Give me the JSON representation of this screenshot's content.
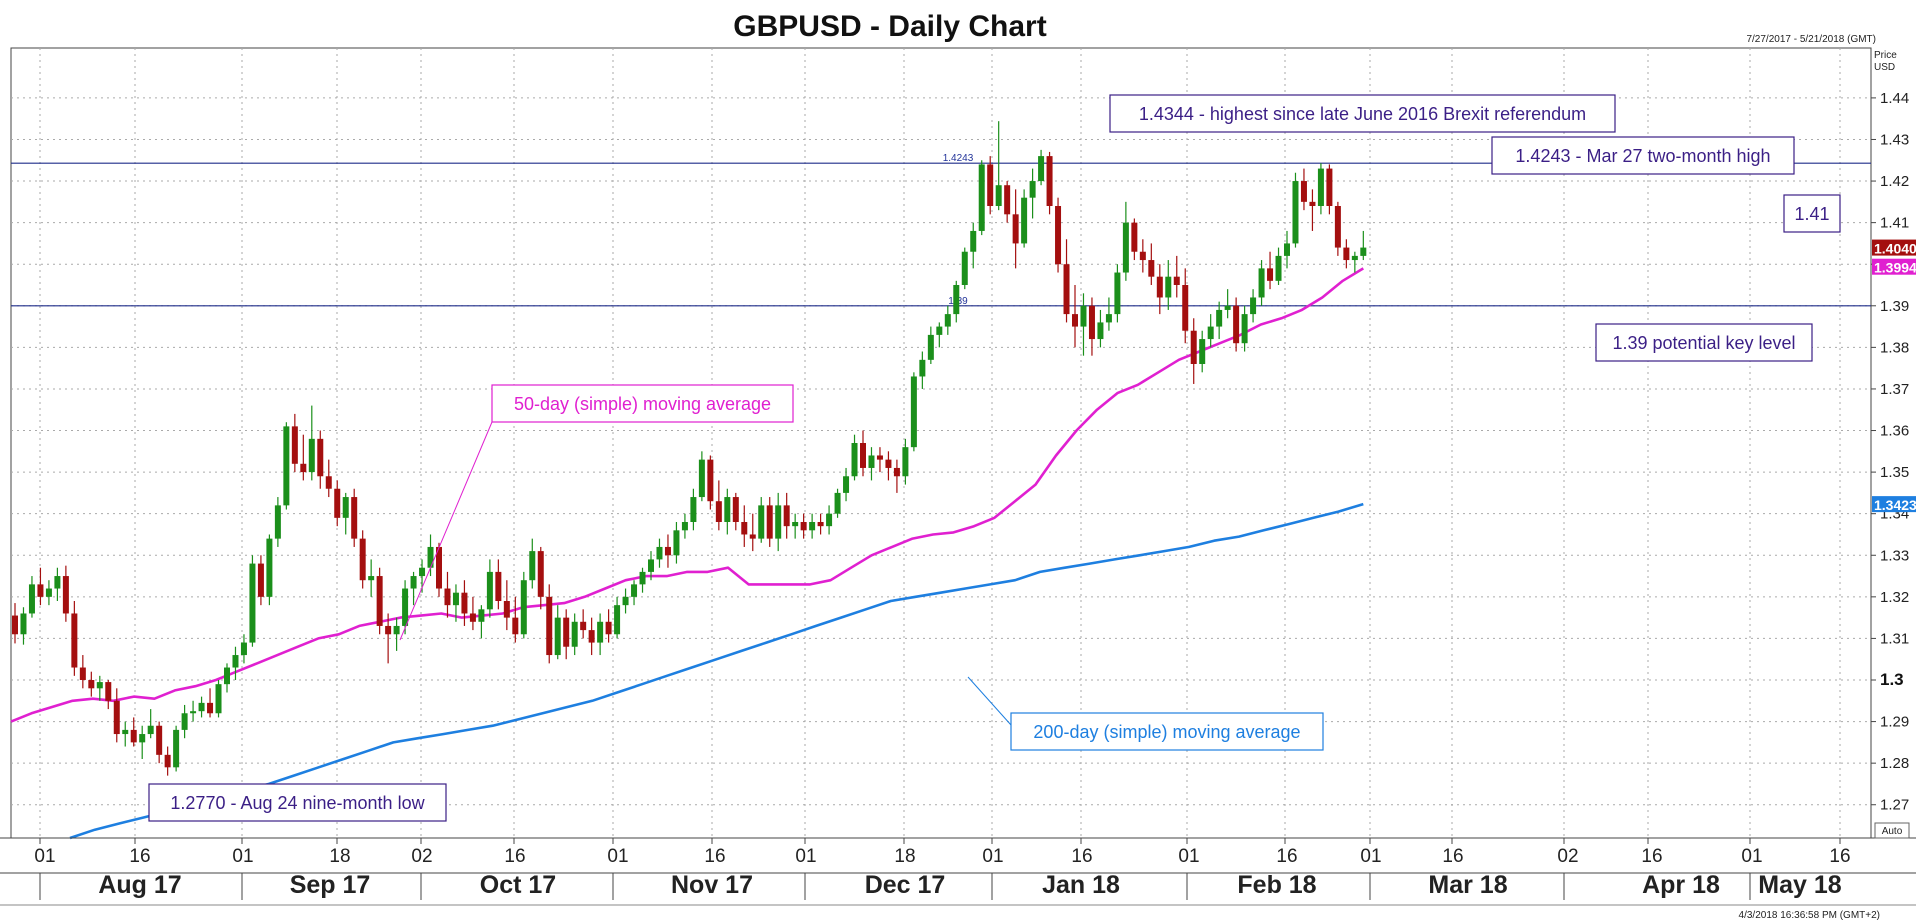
{
  "chart_data": {
    "type": "candlestick",
    "title": "GBPUSD - Daily Chart",
    "date_range_text": "7/27/2017 - 5/21/2018 (GMT)",
    "axis_unit_label": "Price\nUSD",
    "auto_label": "Auto",
    "timestamp_text": "4/3/2018 16:36:58 PM (GMT+2)",
    "ylim": [
      1.262,
      1.452
    ],
    "y_ticks": [
      1.27,
      1.28,
      1.29,
      1.3,
      1.31,
      1.32,
      1.33,
      1.34,
      1.35,
      1.36,
      1.37,
      1.38,
      1.39,
      1.4,
      1.41,
      1.42,
      1.43,
      1.44
    ],
    "y_tick_labels": [
      "1.27",
      "1.28",
      "1.29",
      "1.3",
      "1.31",
      "1.32",
      "1.33",
      "1.34",
      "1.35",
      "1.36",
      "1.37",
      "1.38",
      "1.39",
      "1.40",
      "1.41",
      "1.42",
      "1.43",
      "1.44"
    ],
    "x_day_labels": [
      "01",
      "16",
      "01",
      "18",
      "02",
      "16",
      "01",
      "16",
      "01",
      "18",
      "01",
      "16",
      "01",
      "16",
      "01",
      "16",
      "02",
      "16",
      "01",
      "16"
    ],
    "x_month_labels": [
      "Aug 17",
      "Sep 17",
      "Oct 17",
      "Nov 17",
      "Dec 17",
      "Jan 18",
      "Feb 18",
      "Mar 18",
      "Apr 18",
      "May 18"
    ],
    "colors": {
      "up": "#1b8f1b",
      "down": "#a40f0f",
      "ma50": "#e020d0",
      "ma200": "#1e7fe0",
      "ref": "#1f2d8a",
      "grid": "#aaaaaa"
    },
    "ohlc": [
      [
        1.3155,
        1.3185,
        1.3088,
        1.311
      ],
      [
        1.311,
        1.3175,
        1.3085,
        1.316
      ],
      [
        1.316,
        1.325,
        1.315,
        1.323
      ],
      [
        1.323,
        1.327,
        1.318,
        1.32
      ],
      [
        1.32,
        1.324,
        1.318,
        1.322
      ],
      [
        1.322,
        1.327,
        1.319,
        1.325
      ],
      [
        1.325,
        1.3275,
        1.314,
        1.316
      ],
      [
        1.316,
        1.319,
        1.301,
        1.303
      ],
      [
        1.303,
        1.306,
        1.298,
        1.3
      ],
      [
        1.3,
        1.302,
        1.296,
        1.298
      ],
      [
        1.298,
        1.301,
        1.295,
        1.2995
      ],
      [
        1.2995,
        1.3,
        1.293,
        1.295
      ],
      [
        1.295,
        1.298,
        1.285,
        1.287
      ],
      [
        1.287,
        1.29,
        1.284,
        1.288
      ],
      [
        1.288,
        1.291,
        1.284,
        1.285
      ],
      [
        1.285,
        1.289,
        1.281,
        1.287
      ],
      [
        1.287,
        1.293,
        1.286,
        1.289
      ],
      [
        1.289,
        1.29,
        1.28,
        1.282
      ],
      [
        1.282,
        1.284,
        1.277,
        1.279
      ],
      [
        1.279,
        1.289,
        1.278,
        1.288
      ],
      [
        1.288,
        1.294,
        1.286,
        1.292
      ],
      [
        1.292,
        1.295,
        1.29,
        1.2925
      ],
      [
        1.2925,
        1.296,
        1.291,
        1.2945
      ],
      [
        1.2945,
        1.298,
        1.291,
        1.292
      ],
      [
        1.292,
        1.3,
        1.291,
        1.299
      ],
      [
        1.299,
        1.304,
        1.297,
        1.303
      ],
      [
        1.303,
        1.308,
        1.3,
        1.306
      ],
      [
        1.306,
        1.311,
        1.304,
        1.309
      ],
      [
        1.309,
        1.33,
        1.308,
        1.328
      ],
      [
        1.328,
        1.33,
        1.318,
        1.32
      ],
      [
        1.32,
        1.335,
        1.318,
        1.334
      ],
      [
        1.334,
        1.344,
        1.332,
        1.342
      ],
      [
        1.342,
        1.362,
        1.341,
        1.361
      ],
      [
        1.361,
        1.364,
        1.35,
        1.352
      ],
      [
        1.352,
        1.359,
        1.348,
        1.35
      ],
      [
        1.35,
        1.366,
        1.348,
        1.358
      ],
      [
        1.358,
        1.36,
        1.346,
        1.349
      ],
      [
        1.349,
        1.353,
        1.344,
        1.346
      ],
      [
        1.346,
        1.348,
        1.337,
        1.339
      ],
      [
        1.339,
        1.345,
        1.335,
        1.344
      ],
      [
        1.344,
        1.346,
        1.332,
        1.334
      ],
      [
        1.334,
        1.336,
        1.322,
        1.324
      ],
      [
        1.324,
        1.329,
        1.32,
        1.325
      ],
      [
        1.325,
        1.327,
        1.311,
        1.313
      ],
      [
        1.313,
        1.316,
        1.304,
        1.311
      ],
      [
        1.311,
        1.315,
        1.307,
        1.313
      ],
      [
        1.313,
        1.324,
        1.311,
        1.322
      ],
      [
        1.322,
        1.326,
        1.318,
        1.325
      ],
      [
        1.325,
        1.329,
        1.321,
        1.327
      ],
      [
        1.327,
        1.335,
        1.325,
        1.332
      ],
      [
        1.332,
        1.333,
        1.32,
        1.322
      ],
      [
        1.322,
        1.326,
        1.315,
        1.318
      ],
      [
        1.318,
        1.323,
        1.314,
        1.321
      ],
      [
        1.321,
        1.324,
        1.313,
        1.316
      ],
      [
        1.316,
        1.32,
        1.312,
        1.314
      ],
      [
        1.314,
        1.318,
        1.31,
        1.317
      ],
      [
        1.317,
        1.329,
        1.315,
        1.326
      ],
      [
        1.326,
        1.329,
        1.317,
        1.319
      ],
      [
        1.319,
        1.324,
        1.312,
        1.315
      ],
      [
        1.315,
        1.32,
        1.309,
        1.311
      ],
      [
        1.311,
        1.326,
        1.31,
        1.324
      ],
      [
        1.324,
        1.334,
        1.322,
        1.331
      ],
      [
        1.331,
        1.332,
        1.317,
        1.32
      ],
      [
        1.32,
        1.323,
        1.304,
        1.306
      ],
      [
        1.306,
        1.318,
        1.305,
        1.315
      ],
      [
        1.315,
        1.317,
        1.305,
        1.308
      ],
      [
        1.308,
        1.316,
        1.306,
        1.314
      ],
      [
        1.314,
        1.317,
        1.31,
        1.312
      ],
      [
        1.312,
        1.315,
        1.306,
        1.309
      ],
      [
        1.309,
        1.316,
        1.306,
        1.314
      ],
      [
        1.314,
        1.317,
        1.309,
        1.311
      ],
      [
        1.311,
        1.32,
        1.31,
        1.318
      ],
      [
        1.318,
        1.322,
        1.316,
        1.32
      ],
      [
        1.32,
        1.324,
        1.318,
        1.323
      ],
      [
        1.323,
        1.327,
        1.321,
        1.326
      ],
      [
        1.326,
        1.331,
        1.324,
        1.329
      ],
      [
        1.329,
        1.334,
        1.327,
        1.332
      ],
      [
        1.332,
        1.335,
        1.327,
        1.33
      ],
      [
        1.33,
        1.338,
        1.328,
        1.336
      ],
      [
        1.336,
        1.34,
        1.334,
        1.338
      ],
      [
        1.338,
        1.346,
        1.336,
        1.344
      ],
      [
        1.344,
        1.355,
        1.343,
        1.353
      ],
      [
        1.353,
        1.354,
        1.341,
        1.343
      ],
      [
        1.343,
        1.348,
        1.336,
        1.338
      ],
      [
        1.338,
        1.346,
        1.335,
        1.344
      ],
      [
        1.344,
        1.345,
        1.336,
        1.338
      ],
      [
        1.338,
        1.342,
        1.332,
        1.335
      ],
      [
        1.335,
        1.34,
        1.331,
        1.334
      ],
      [
        1.334,
        1.344,
        1.333,
        1.342
      ],
      [
        1.342,
        1.344,
        1.332,
        1.334
      ],
      [
        1.334,
        1.345,
        1.331,
        1.342
      ],
      [
        1.342,
        1.345,
        1.334,
        1.337
      ],
      [
        1.337,
        1.34,
        1.334,
        1.338
      ],
      [
        1.338,
        1.34,
        1.334,
        1.336
      ],
      [
        1.336,
        1.34,
        1.334,
        1.338
      ],
      [
        1.338,
        1.34,
        1.335,
        1.337
      ],
      [
        1.337,
        1.342,
        1.335,
        1.34
      ],
      [
        1.34,
        1.346,
        1.339,
        1.345
      ],
      [
        1.345,
        1.351,
        1.343,
        1.349
      ],
      [
        1.349,
        1.359,
        1.348,
        1.357
      ],
      [
        1.357,
        1.36,
        1.349,
        1.351
      ],
      [
        1.351,
        1.356,
        1.348,
        1.354
      ],
      [
        1.354,
        1.356,
        1.35,
        1.353
      ],
      [
        1.353,
        1.355,
        1.348,
        1.351
      ],
      [
        1.351,
        1.353,
        1.345,
        1.349
      ],
      [
        1.349,
        1.358,
        1.347,
        1.356
      ],
      [
        1.356,
        1.374,
        1.355,
        1.373
      ],
      [
        1.373,
        1.379,
        1.37,
        1.377
      ],
      [
        1.377,
        1.385,
        1.376,
        1.383
      ],
      [
        1.383,
        1.386,
        1.38,
        1.385
      ],
      [
        1.385,
        1.39,
        1.383,
        1.388
      ],
      [
        1.388,
        1.396,
        1.386,
        1.395
      ],
      [
        1.395,
        1.404,
        1.394,
        1.403
      ],
      [
        1.403,
        1.41,
        1.399,
        1.408
      ],
      [
        1.408,
        1.425,
        1.407,
        1.424
      ],
      [
        1.424,
        1.426,
        1.412,
        1.414
      ],
      [
        1.414,
        1.4344,
        1.413,
        1.419
      ],
      [
        1.419,
        1.42,
        1.41,
        1.412
      ],
      [
        1.412,
        1.418,
        1.399,
        1.405
      ],
      [
        1.405,
        1.418,
        1.404,
        1.416
      ],
      [
        1.416,
        1.423,
        1.411,
        1.42
      ],
      [
        1.42,
        1.4275,
        1.419,
        1.426
      ],
      [
        1.426,
        1.427,
        1.412,
        1.414
      ],
      [
        1.414,
        1.416,
        1.398,
        1.4
      ],
      [
        1.4,
        1.406,
        1.386,
        1.388
      ],
      [
        1.388,
        1.395,
        1.38,
        1.385
      ],
      [
        1.385,
        1.393,
        1.378,
        1.39
      ],
      [
        1.39,
        1.392,
        1.378,
        1.382
      ],
      [
        1.382,
        1.389,
        1.38,
        1.386
      ],
      [
        1.386,
        1.392,
        1.384,
        1.388
      ],
      [
        1.388,
        1.4,
        1.386,
        1.398
      ],
      [
        1.398,
        1.415,
        1.396,
        1.41
      ],
      [
        1.41,
        1.411,
        1.401,
        1.403
      ],
      [
        1.403,
        1.406,
        1.398,
        1.401
      ],
      [
        1.401,
        1.405,
        1.395,
        1.397
      ],
      [
        1.397,
        1.4,
        1.388,
        1.392
      ],
      [
        1.392,
        1.401,
        1.389,
        1.397
      ],
      [
        1.397,
        1.402,
        1.392,
        1.395
      ],
      [
        1.395,
        1.399,
        1.381,
        1.384
      ],
      [
        1.384,
        1.387,
        1.3712,
        1.376
      ],
      [
        1.376,
        1.384,
        1.374,
        1.382
      ],
      [
        1.382,
        1.388,
        1.38,
        1.385
      ],
      [
        1.385,
        1.391,
        1.382,
        1.389
      ],
      [
        1.389,
        1.394,
        1.387,
        1.39
      ],
      [
        1.39,
        1.392,
        1.379,
        1.381
      ],
      [
        1.381,
        1.39,
        1.379,
        1.388
      ],
      [
        1.388,
        1.394,
        1.386,
        1.392
      ],
      [
        1.392,
        1.401,
        1.39,
        1.399
      ],
      [
        1.399,
        1.403,
        1.394,
        1.396
      ],
      [
        1.396,
        1.404,
        1.395,
        1.402
      ],
      [
        1.402,
        1.408,
        1.399,
        1.405
      ],
      [
        1.405,
        1.422,
        1.404,
        1.42
      ],
      [
        1.42,
        1.423,
        1.413,
        1.415
      ],
      [
        1.415,
        1.418,
        1.408,
        1.414
      ],
      [
        1.414,
        1.4243,
        1.412,
        1.423
      ],
      [
        1.423,
        1.424,
        1.412,
        1.414
      ],
      [
        1.414,
        1.415,
        1.402,
        1.404
      ],
      [
        1.404,
        1.406,
        1.399,
        1.401
      ],
      [
        1.401,
        1.403,
        1.398,
        1.402
      ],
      [
        1.402,
        1.408,
        1.401,
        1.404
      ]
    ],
    "ma50_last": "1.3994",
    "ma200_last": "1.3423",
    "last_price": "1.4040",
    "ma50": [
      1.29,
      1.292,
      1.2935,
      1.295,
      1.2955,
      1.295,
      1.296,
      1.2955,
      1.2975,
      1.2985,
      1.3,
      1.302,
      1.304,
      1.306,
      1.308,
      1.31,
      1.311,
      1.313,
      1.314,
      1.315,
      1.3155,
      1.316,
      1.315,
      1.3155,
      1.316,
      1.3175,
      1.318,
      1.3185,
      1.32,
      1.322,
      1.324,
      1.325,
      1.325,
      1.326,
      1.326,
      1.327,
      1.323,
      1.323,
      1.323,
      1.323,
      1.324,
      1.327,
      1.33,
      1.332,
      1.334,
      1.335,
      1.3355,
      1.337,
      1.339,
      1.343,
      1.347,
      1.354,
      1.36,
      1.365,
      1.369,
      1.371,
      1.374,
      1.377,
      1.379,
      1.381,
      1.383,
      1.3855,
      1.387,
      1.389,
      1.392,
      1.396,
      1.399
    ],
    "ma200": [
      1.262,
      1.264,
      1.2655,
      1.267,
      1.2685,
      1.27,
      1.272,
      1.2735,
      1.275,
      1.277,
      1.279,
      1.281,
      1.283,
      1.285,
      1.286,
      1.287,
      1.288,
      1.289,
      1.2905,
      1.292,
      1.2935,
      1.295,
      1.297,
      1.299,
      1.301,
      1.303,
      1.305,
      1.307,
      1.309,
      1.311,
      1.313,
      1.315,
      1.317,
      1.319,
      1.32,
      1.321,
      1.322,
      1.323,
      1.324,
      1.326,
      1.327,
      1.328,
      1.329,
      1.33,
      1.331,
      1.332,
      1.3335,
      1.3345,
      1.336,
      1.3375,
      1.339,
      1.3405,
      1.3423
    ],
    "reference_lines": [
      {
        "value": 1.4243,
        "label": "1.4243"
      },
      {
        "value": 1.39,
        "label": "1.39"
      }
    ],
    "annotations": [
      {
        "text": "1.4344 - highest since late June 2016 Brexit referendum",
        "color": "#3b1f86"
      },
      {
        "text": "1.4243 - Mar 27 two-month high",
        "color": "#3b1f86"
      },
      {
        "text": "1.41",
        "color": "#3b1f86"
      },
      {
        "text": "1.39 potential key level",
        "color": "#3b1f86"
      },
      {
        "text": "50-day (simple) moving average",
        "color": "#e020d0"
      },
      {
        "text": "200-day (simple) moving average",
        "color": "#1e7fe0"
      },
      {
        "text": "1.2770 - Aug 24 nine-month low",
        "color": "#3b1f86"
      }
    ],
    "grid": true
  }
}
